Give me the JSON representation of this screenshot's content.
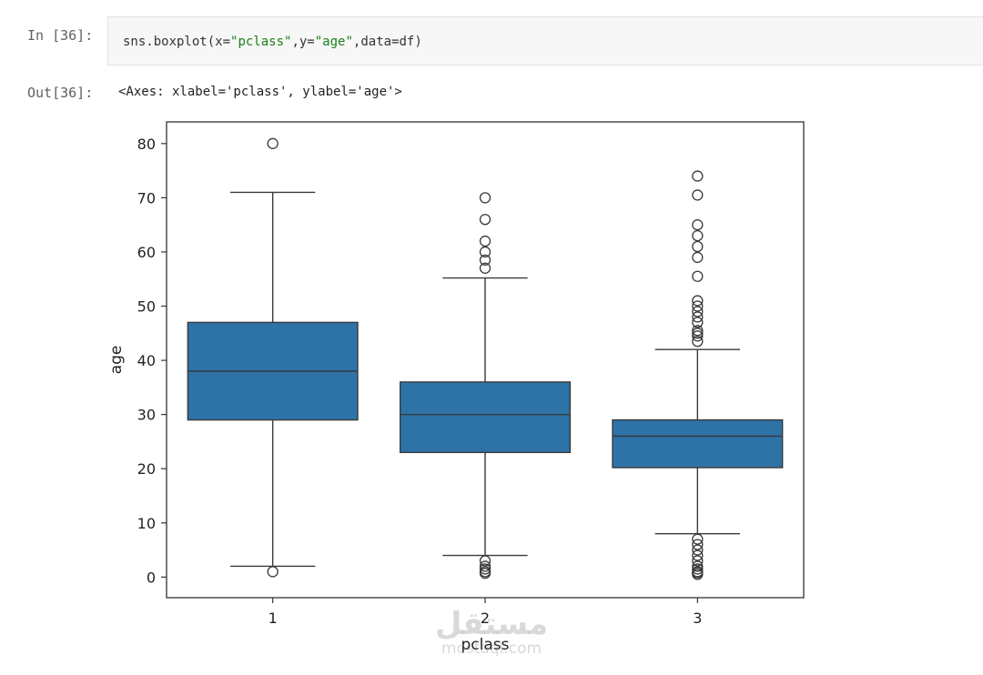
{
  "cell": {
    "in_prompt": "In [36]:",
    "code": {
      "prefix": "sns.boxplot(x=",
      "x_str": "\"pclass\"",
      "mid": ",y=",
      "y_str": "\"age\"",
      "suffix": ",data=df)"
    },
    "out_prompt": "Out[36]:",
    "out_text": "<Axes: xlabel='pclass', ylabel='age'>"
  },
  "watermark": {
    "logo": "مستقل",
    "url": "mostaql.com"
  },
  "colors": {
    "box_fill": "#2e73a8",
    "box_edge": "#3a3a3a",
    "axes_edge": "#333333"
  },
  "chart_data": {
    "type": "boxplot",
    "xlabel": "pclass",
    "ylabel": "age",
    "categories": [
      "1",
      "2",
      "3"
    ],
    "ylim": [
      -3.8,
      84
    ],
    "yticks": [
      0,
      10,
      20,
      30,
      40,
      50,
      60,
      70,
      80
    ],
    "grid": false,
    "boxes": [
      {
        "category": "1",
        "whisker_low": 2,
        "q1": 29,
        "median": 38,
        "q3": 47,
        "whisker_high": 71,
        "outliers": [
          80,
          1
        ]
      },
      {
        "category": "2",
        "whisker_low": 4,
        "q1": 23,
        "median": 30,
        "q3": 36,
        "whisker_high": 55.2,
        "outliers": [
          70,
          66,
          62,
          60,
          58.5,
          57,
          3,
          2,
          1.5,
          1,
          0.7
        ]
      },
      {
        "category": "3",
        "whisker_low": 8,
        "q1": 20.2,
        "median": 26,
        "q3": 29,
        "whisker_high": 42,
        "outliers": [
          74,
          70.5,
          65,
          63,
          61,
          59,
          55.5,
          51,
          50,
          49,
          48,
          47,
          45.5,
          45,
          44.5,
          43.5,
          7,
          6,
          5,
          4,
          3,
          2,
          1.5,
          1,
          0.8,
          0.5
        ]
      }
    ]
  }
}
